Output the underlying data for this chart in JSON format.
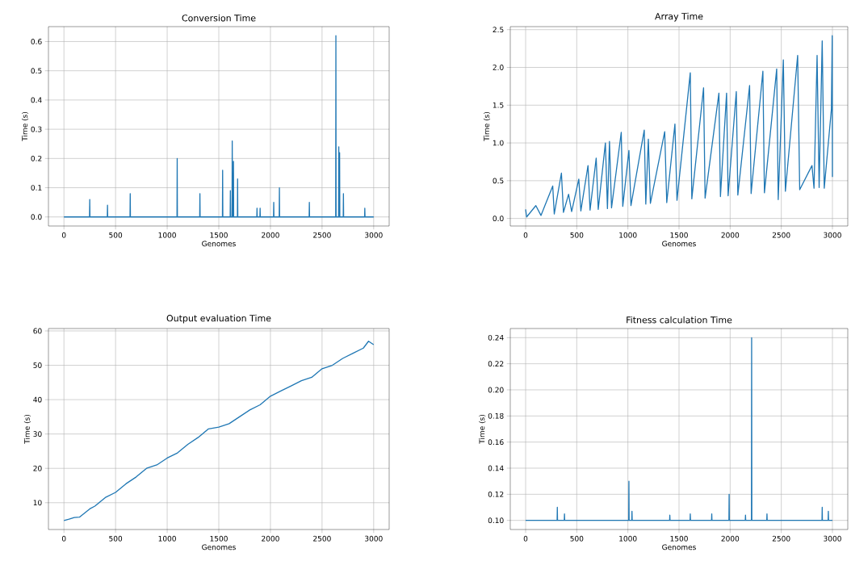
{
  "chart_data": [
    {
      "type": "line",
      "title": "Conversion Time",
      "xlabel": "Genomes",
      "ylabel": "Time (s)",
      "color": "#1f77b4",
      "grid": true,
      "x": [
        0,
        248,
        250,
        252,
        420,
        422,
        424,
        640,
        642,
        644,
        1095,
        1097,
        1099,
        1315,
        1317,
        1319,
        1535,
        1537,
        1539,
        1610,
        1612,
        1614,
        1628,
        1630,
        1633,
        1640,
        1642,
        1644,
        1680,
        1682,
        1684,
        1868,
        1870,
        1872,
        1898,
        1900,
        1902,
        2030,
        2032,
        2034,
        2085,
        2087,
        2089,
        2375,
        2377,
        2379,
        2632,
        2634,
        2636,
        2660,
        2662,
        2664,
        2668,
        2670,
        2672,
        2705,
        2707,
        2709,
        2912,
        2914,
        2916,
        3000
      ],
      "values": [
        0,
        0,
        0.06,
        0,
        0,
        0.04,
        0,
        0,
        0.08,
        0,
        0,
        0.2,
        0,
        0,
        0.08,
        0,
        0,
        0.16,
        0,
        0,
        0.09,
        0,
        0,
        0.26,
        0,
        0,
        0.19,
        0,
        0,
        0.13,
        0,
        0,
        0.03,
        0,
        0,
        0.03,
        0,
        0,
        0.05,
        0,
        0,
        0.1,
        0,
        0,
        0.05,
        0,
        0,
        0.62,
        0,
        0,
        0.24,
        0,
        0,
        0.22,
        0,
        0,
        0.08,
        0,
        0,
        0.03,
        0,
        0
      ],
      "xlim": [
        -150,
        3150
      ],
      "ylim": [
        -0.031,
        0.651
      ],
      "xticks": [
        0,
        500,
        1000,
        1500,
        2000,
        2500,
        3000
      ],
      "yticks": [
        {
          "value": 0,
          "label": "0.0"
        },
        {
          "value": 0.1,
          "label": "0.1"
        },
        {
          "value": 0.2,
          "label": "0.2"
        },
        {
          "value": 0.3,
          "label": "0.3"
        },
        {
          "value": 0.4,
          "label": "0.4"
        },
        {
          "value": 0.5,
          "label": "0.5"
        },
        {
          "value": 0.6,
          "label": "0.6"
        }
      ]
    },
    {
      "type": "line",
      "title": "Array Time",
      "xlabel": "Genomes",
      "ylabel": "Time (s)",
      "color": "#1f77b4",
      "grid": true,
      "x": [
        0,
        10,
        100,
        150,
        265,
        280,
        350,
        370,
        420,
        450,
        520,
        540,
        610,
        630,
        690,
        710,
        780,
        800,
        820,
        840,
        935,
        950,
        1010,
        1030,
        1160,
        1175,
        1200,
        1220,
        1360,
        1380,
        1460,
        1480,
        1610,
        1625,
        1740,
        1755,
        1890,
        1905,
        1965,
        1980,
        2060,
        2075,
        2190,
        2205,
        2320,
        2335,
        2455,
        2470,
        2520,
        2540,
        2660,
        2680,
        2800,
        2820,
        2850,
        2870,
        2900,
        2920,
        2990,
        2998,
        3000
      ],
      "values": [
        0.12,
        0.02,
        0.17,
        0.04,
        0.43,
        0.06,
        0.6,
        0.08,
        0.32,
        0.09,
        0.52,
        0.1,
        0.7,
        0.11,
        0.8,
        0.12,
        1.0,
        0.13,
        1.02,
        0.14,
        1.14,
        0.16,
        0.9,
        0.17,
        1.17,
        0.19,
        1.05,
        0.2,
        1.15,
        0.21,
        1.25,
        0.24,
        1.93,
        0.26,
        1.73,
        0.27,
        1.66,
        0.29,
        1.66,
        0.3,
        1.68,
        0.31,
        1.76,
        0.33,
        1.95,
        0.34,
        1.98,
        0.25,
        2.1,
        0.36,
        2.16,
        0.38,
        0.7,
        0.4,
        2.16,
        0.41,
        2.35,
        0.4,
        1.45,
        2.42,
        0.55
      ],
      "xlim": [
        -150,
        3150
      ],
      "ylim": [
        -0.1,
        2.54
      ],
      "xticks": [
        0,
        500,
        1000,
        1500,
        2000,
        2500,
        3000
      ],
      "yticks": [
        {
          "value": 0,
          "label": "0.0"
        },
        {
          "value": 0.5,
          "label": "0.5"
        },
        {
          "value": 1,
          "label": "1.0"
        },
        {
          "value": 1.5,
          "label": "1.5"
        },
        {
          "value": 2,
          "label": "2.0"
        },
        {
          "value": 2.5,
          "label": "2.5"
        }
      ]
    },
    {
      "type": "line",
      "title": "Output evaluation Time",
      "xlabel": "Genomes",
      "ylabel": "Time (s)",
      "color": "#1f77b4",
      "grid": true,
      "x": [
        0,
        50,
        100,
        150,
        200,
        250,
        300,
        400,
        500,
        600,
        700,
        800,
        900,
        1000,
        1100,
        1200,
        1300,
        1400,
        1500,
        1600,
        1700,
        1800,
        1900,
        2000,
        2100,
        2200,
        2300,
        2400,
        2500,
        2600,
        2700,
        2800,
        2900,
        2950,
        3000
      ],
      "values": [
        4.8,
        5.2,
        5.7,
        5.8,
        7.0,
        8.2,
        9.0,
        11.5,
        13,
        15.5,
        17.5,
        20,
        21,
        23,
        24.5,
        27,
        29,
        31.5,
        32,
        33,
        35,
        37,
        38.5,
        41,
        42.5,
        44,
        45.5,
        46.5,
        49,
        50,
        52,
        53.5,
        55,
        57,
        56
      ],
      "xlim": [
        -150,
        3150
      ],
      "ylim": [
        2.2,
        60.7
      ],
      "xticks": [
        0,
        500,
        1000,
        1500,
        2000,
        2500,
        3000
      ],
      "yticks": [
        10,
        20,
        30,
        40,
        50,
        60
      ]
    },
    {
      "type": "line",
      "title": "Fitness calculation Time",
      "xlabel": "Genomes",
      "ylabel": "Time (s)",
      "color": "#1f77b4",
      "grid": true,
      "x": [
        0,
        308,
        310,
        312,
        378,
        380,
        382,
        1008,
        1010,
        1012,
        1038,
        1040,
        1042,
        1408,
        1410,
        1412,
        1608,
        1610,
        1612,
        1818,
        1820,
        1822,
        1988,
        1990,
        1992,
        2148,
        2150,
        2152,
        2208,
        2210,
        2212,
        2358,
        2360,
        2362,
        2898,
        2900,
        2902,
        2958,
        2960,
        2962,
        3000
      ],
      "values": [
        0.1,
        0.1,
        0.11,
        0.1,
        0.1,
        0.105,
        0.1,
        0.1,
        0.13,
        0.1,
        0.1,
        0.107,
        0.1,
        0.1,
        0.104,
        0.1,
        0.1,
        0.105,
        0.1,
        0.1,
        0.105,
        0.1,
        0.1,
        0.12,
        0.1,
        0.1,
        0.104,
        0.1,
        0.1,
        0.24,
        0.1,
        0.1,
        0.105,
        0.1,
        0.1,
        0.11,
        0.1,
        0.1,
        0.107,
        0.1,
        0.1
      ],
      "xlim": [
        -150,
        3150
      ],
      "ylim": [
        0.093,
        0.247
      ],
      "xticks": [
        0,
        500,
        1000,
        1500,
        2000,
        2500,
        3000
      ],
      "yticks": [
        {
          "value": 0.1,
          "label": "0.10"
        },
        {
          "value": 0.12,
          "label": "0.12"
        },
        {
          "value": 0.14,
          "label": "0.14"
        },
        {
          "value": 0.16,
          "label": "0.16"
        },
        {
          "value": 0.18,
          "label": "0.18"
        },
        {
          "value": 0.2,
          "label": "0.20"
        },
        {
          "value": 0.22,
          "label": "0.22"
        },
        {
          "value": 0.24,
          "label": "0.24"
        }
      ]
    }
  ]
}
